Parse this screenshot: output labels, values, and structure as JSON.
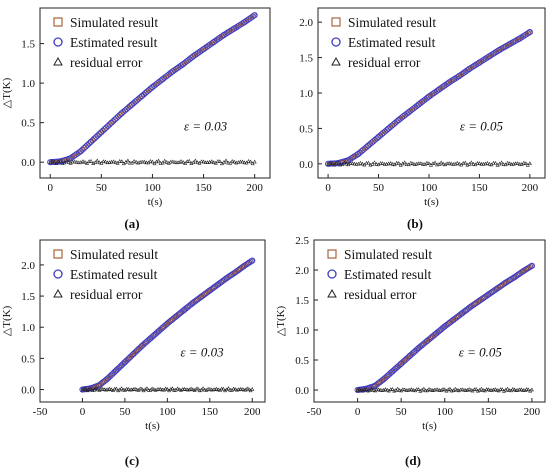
{
  "chart_data": [
    {
      "panel": "(a)",
      "type": "scatter",
      "ylabel": "△T(K)",
      "xlabel": "t(s)",
      "xlim": [
        -10,
        215
      ],
      "ylim": [
        -0.2,
        1.95
      ],
      "xticks": [
        0,
        50,
        100,
        150,
        200
      ],
      "yticks": [
        0.0,
        0.5,
        1.0,
        1.5
      ],
      "annotation": "ε = 0.03",
      "legend_position": "top-left",
      "series": [
        {
          "name": "Simulated result",
          "marker": "square",
          "color": "#a3542a",
          "x": [
            0,
            10,
            20,
            30,
            40,
            50,
            60,
            70,
            80,
            90,
            100,
            110,
            120,
            130,
            140,
            150,
            160,
            170,
            180,
            190,
            200
          ],
          "y": [
            0.0,
            0.01,
            0.05,
            0.14,
            0.26,
            0.38,
            0.5,
            0.62,
            0.73,
            0.84,
            0.95,
            1.05,
            1.15,
            1.24,
            1.34,
            1.43,
            1.52,
            1.61,
            1.69,
            1.77,
            1.86
          ]
        },
        {
          "name": "Estimated result",
          "marker": "circle",
          "color": "#3d3dc4",
          "x": [
            0,
            10,
            20,
            30,
            40,
            50,
            60,
            70,
            80,
            90,
            100,
            110,
            120,
            130,
            140,
            150,
            160,
            170,
            180,
            190,
            200
          ],
          "y": [
            0.0,
            0.01,
            0.05,
            0.14,
            0.26,
            0.38,
            0.5,
            0.62,
            0.73,
            0.84,
            0.95,
            1.05,
            1.15,
            1.24,
            1.34,
            1.43,
            1.52,
            1.61,
            1.69,
            1.77,
            1.86
          ]
        },
        {
          "name": "residual error",
          "marker": "triangle",
          "color": "#222222",
          "x": [
            0,
            10,
            20,
            30,
            40,
            50,
            60,
            70,
            80,
            90,
            100,
            110,
            120,
            130,
            140,
            150,
            160,
            170,
            180,
            190,
            200
          ],
          "y": [
            0.0,
            0.0,
            0.0,
            0.0,
            0.0,
            0.0,
            0.0,
            0.0,
            0.0,
            0.0,
            0.0,
            0.0,
            0.0,
            0.0,
            0.0,
            0.0,
            0.0,
            0.0,
            0.0,
            0.0,
            0.0
          ]
        }
      ]
    },
    {
      "panel": "(b)",
      "type": "scatter",
      "ylabel": "",
      "xlabel": "t(s)",
      "xlim": [
        -10,
        215
      ],
      "ylim": [
        -0.2,
        2.2
      ],
      "xticks": [
        0,
        50,
        100,
        150,
        200
      ],
      "yticks": [
        0.0,
        0.5,
        1.0,
        1.5,
        2.0
      ],
      "annotation": "ε = 0.05",
      "legend_position": "top-left",
      "series": [
        {
          "name": "Simulated result",
          "marker": "square",
          "color": "#a3542a",
          "x": [
            0,
            10,
            20,
            30,
            40,
            50,
            60,
            70,
            80,
            90,
            100,
            110,
            120,
            130,
            140,
            150,
            160,
            170,
            180,
            190,
            200
          ],
          "y": [
            0.0,
            0.01,
            0.05,
            0.14,
            0.26,
            0.38,
            0.5,
            0.62,
            0.73,
            0.84,
            0.95,
            1.05,
            1.15,
            1.24,
            1.34,
            1.43,
            1.52,
            1.61,
            1.69,
            1.77,
            1.86
          ]
        },
        {
          "name": "Estimated result",
          "marker": "circle",
          "color": "#3d3dc4",
          "x": [
            0,
            10,
            20,
            30,
            40,
            50,
            60,
            70,
            80,
            90,
            100,
            110,
            120,
            130,
            140,
            150,
            160,
            170,
            180,
            190,
            200
          ],
          "y": [
            0.0,
            0.01,
            0.05,
            0.14,
            0.26,
            0.38,
            0.5,
            0.62,
            0.73,
            0.84,
            0.95,
            1.05,
            1.15,
            1.24,
            1.34,
            1.43,
            1.52,
            1.61,
            1.69,
            1.77,
            1.86
          ]
        },
        {
          "name": "residual error",
          "marker": "triangle",
          "color": "#222222",
          "x": [
            0,
            10,
            20,
            30,
            40,
            50,
            60,
            70,
            80,
            90,
            100,
            110,
            120,
            130,
            140,
            150,
            160,
            170,
            180,
            190,
            200
          ],
          "y": [
            0.0,
            0.0,
            0.0,
            0.0,
            0.0,
            0.0,
            0.0,
            0.0,
            0.0,
            0.0,
            0.0,
            0.0,
            0.0,
            0.0,
            0.0,
            0.0,
            0.0,
            0.0,
            0.0,
            0.0,
            0.0
          ]
        }
      ]
    },
    {
      "panel": "(c)",
      "type": "scatter",
      "ylabel": "△T(K)",
      "xlabel": "t(s)",
      "xlim": [
        -50,
        215
      ],
      "ylim": [
        -0.2,
        2.4
      ],
      "xticks": [
        -50,
        0,
        50,
        100,
        150,
        200
      ],
      "yticks": [
        0.0,
        0.5,
        1.0,
        1.5,
        2.0
      ],
      "annotation": "ε = 0.03",
      "legend_position": "top-left",
      "series": [
        {
          "name": "Simulated result",
          "marker": "square",
          "color": "#a3542a",
          "x": [
            0,
            10,
            20,
            30,
            40,
            50,
            60,
            70,
            80,
            90,
            100,
            110,
            120,
            130,
            140,
            150,
            160,
            170,
            180,
            190,
            200
          ],
          "y": [
            0.0,
            0.02,
            0.07,
            0.18,
            0.31,
            0.44,
            0.57,
            0.7,
            0.82,
            0.94,
            1.06,
            1.17,
            1.28,
            1.39,
            1.49,
            1.59,
            1.69,
            1.79,
            1.88,
            1.98,
            2.07
          ]
        },
        {
          "name": "Estimated result",
          "marker": "circle",
          "color": "#3d3dc4",
          "x": [
            0,
            10,
            20,
            30,
            40,
            50,
            60,
            70,
            80,
            90,
            100,
            110,
            120,
            130,
            140,
            150,
            160,
            170,
            180,
            190,
            200
          ],
          "y": [
            0.0,
            0.02,
            0.07,
            0.18,
            0.31,
            0.44,
            0.57,
            0.7,
            0.82,
            0.94,
            1.06,
            1.17,
            1.28,
            1.39,
            1.49,
            1.59,
            1.69,
            1.79,
            1.88,
            1.98,
            2.07
          ]
        },
        {
          "name": "residual error",
          "marker": "triangle",
          "color": "#222222",
          "x": [
            0,
            10,
            20,
            30,
            40,
            50,
            60,
            70,
            80,
            90,
            100,
            110,
            120,
            130,
            140,
            150,
            160,
            170,
            180,
            190,
            200
          ],
          "y": [
            0.0,
            0.0,
            0.0,
            0.0,
            0.0,
            0.0,
            0.0,
            0.0,
            0.0,
            0.0,
            0.0,
            0.0,
            0.0,
            0.0,
            0.0,
            0.0,
            0.0,
            0.0,
            0.0,
            0.0,
            0.0
          ]
        }
      ]
    },
    {
      "panel": "(d)",
      "type": "scatter",
      "ylabel": "△T(K)",
      "xlabel": "t(s)",
      "xlim": [
        -50,
        215
      ],
      "ylim": [
        -0.2,
        2.5
      ],
      "xticks": [
        -50,
        0,
        50,
        100,
        150,
        200
      ],
      "yticks": [
        0.0,
        0.5,
        1.0,
        1.5,
        2.0,
        2.5
      ],
      "annotation": "ε = 0.05",
      "legend_position": "top-left",
      "series": [
        {
          "name": "Simulated result",
          "marker": "square",
          "color": "#a3542a",
          "x": [
            0,
            10,
            20,
            30,
            40,
            50,
            60,
            70,
            80,
            90,
            100,
            110,
            120,
            130,
            140,
            150,
            160,
            170,
            180,
            190,
            200
          ],
          "y": [
            0.0,
            0.02,
            0.07,
            0.18,
            0.31,
            0.44,
            0.57,
            0.7,
            0.82,
            0.94,
            1.06,
            1.17,
            1.28,
            1.39,
            1.49,
            1.59,
            1.69,
            1.79,
            1.88,
            1.98,
            2.07
          ]
        },
        {
          "name": "Estimated result",
          "marker": "circle",
          "color": "#3d3dc4",
          "x": [
            0,
            10,
            20,
            30,
            40,
            50,
            60,
            70,
            80,
            90,
            100,
            110,
            120,
            130,
            140,
            150,
            160,
            170,
            180,
            190,
            200
          ],
          "y": [
            0.0,
            0.02,
            0.07,
            0.18,
            0.31,
            0.44,
            0.57,
            0.7,
            0.82,
            0.94,
            1.06,
            1.17,
            1.28,
            1.39,
            1.49,
            1.59,
            1.69,
            1.79,
            1.88,
            1.98,
            2.07
          ]
        },
        {
          "name": "residual error",
          "marker": "triangle",
          "color": "#222222",
          "x": [
            0,
            10,
            20,
            30,
            40,
            50,
            60,
            70,
            80,
            90,
            100,
            110,
            120,
            130,
            140,
            150,
            160,
            170,
            180,
            190,
            200
          ],
          "y": [
            0.0,
            0.0,
            0.0,
            0.0,
            0.0,
            0.0,
            0.0,
            0.0,
            0.0,
            0.0,
            0.0,
            0.0,
            0.0,
            0.0,
            0.0,
            0.0,
            0.0,
            0.0,
            0.0,
            0.0,
            0.0
          ]
        }
      ]
    }
  ]
}
